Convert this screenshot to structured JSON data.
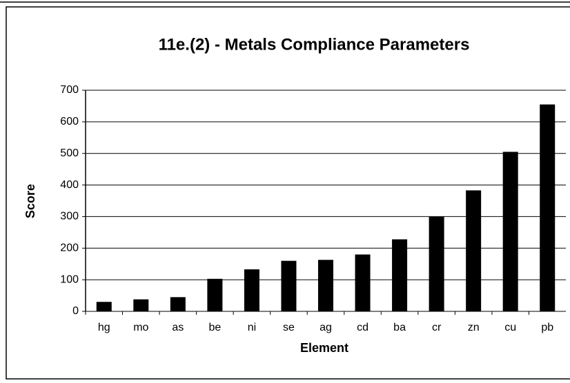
{
  "chart_data": {
    "type": "bar",
    "title": "11e.(2) - Metals Compliance Parameters",
    "x_label": "Element",
    "y_label": "Score",
    "categories": [
      "hg",
      "mo",
      "as",
      "be",
      "ni",
      "se",
      "ag",
      "cd",
      "ba",
      "cr",
      "zn",
      "cu",
      "pb"
    ],
    "values": [
      30,
      38,
      45,
      103,
      133,
      160,
      163,
      180,
      228,
      300,
      383,
      505,
      655
    ],
    "color": "#000000",
    "ylim": [
      0,
      700
    ],
    "yticks": [
      0,
      100,
      200,
      300,
      400,
      500,
      600,
      700
    ],
    "grid": true
  }
}
